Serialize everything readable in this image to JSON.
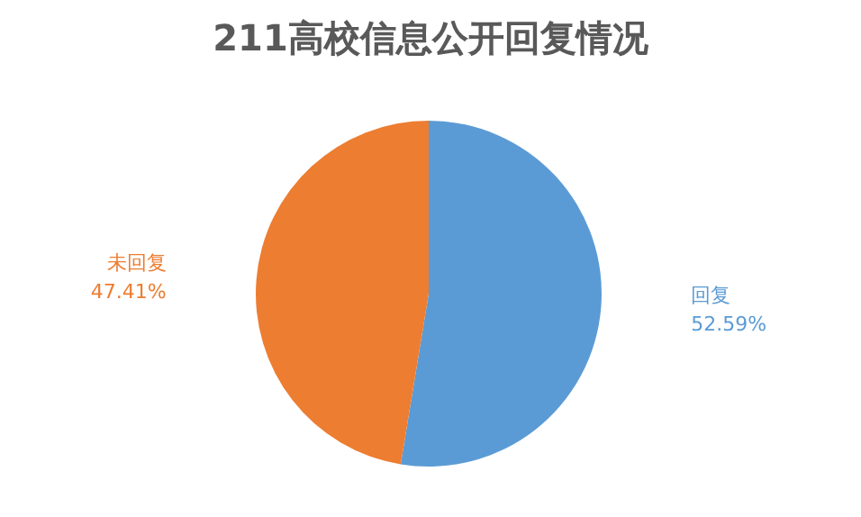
{
  "chart_data": {
    "type": "pie",
    "title": "211高校信息公开回复情况",
    "categories": [
      "回复",
      "未回复"
    ],
    "values": [
      52.59,
      47.41
    ],
    "colors": [
      "#5b9bd5",
      "#ed7d31"
    ],
    "value_labels": [
      "52.59%",
      "47.41%"
    ],
    "legend": false
  }
}
